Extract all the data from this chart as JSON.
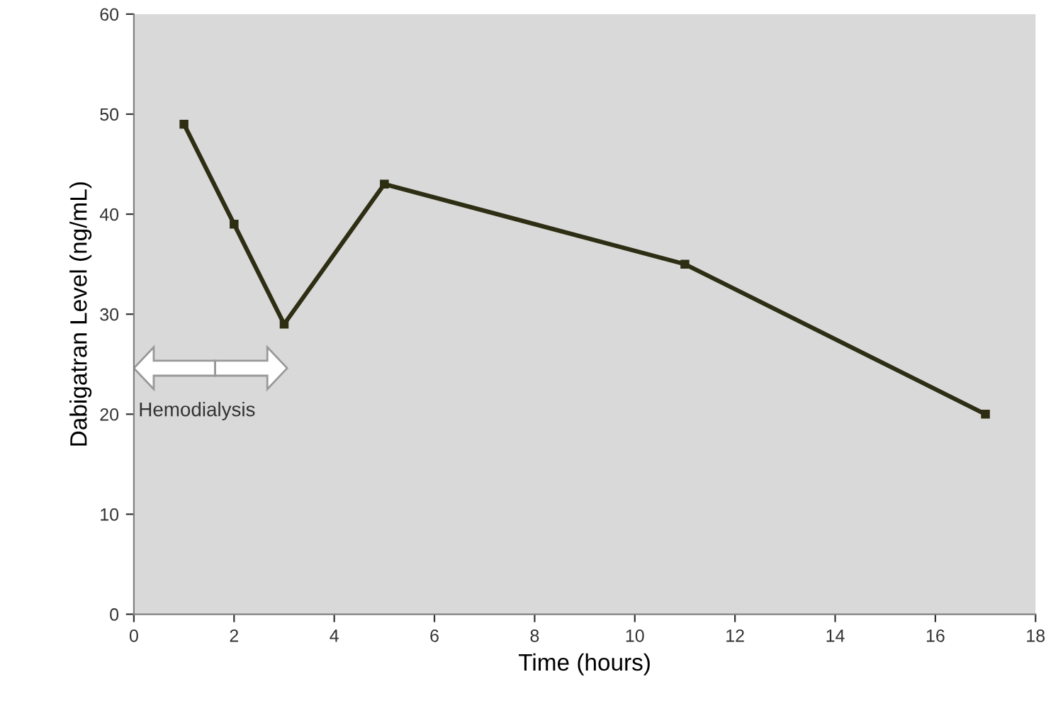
{
  "chart_data": {
    "type": "line",
    "xlabel": "Time (hours)",
    "ylabel": "Dabigatran Level (ng/mL)",
    "x": [
      1,
      2,
      3,
      5,
      11,
      17
    ],
    "series": [
      {
        "color": "#2e2e14",
        "values": [
          49,
          39,
          29,
          43,
          35,
          20
        ]
      }
    ],
    "xlim": [
      0,
      18
    ],
    "xticks": [
      0,
      2,
      4,
      6,
      8,
      10,
      12,
      14,
      16,
      18
    ],
    "ylim": [
      0,
      60
    ],
    "yticks": [
      0,
      10,
      20,
      30,
      40,
      50,
      60
    ],
    "marker": "square",
    "line_style": "solid",
    "grid": false,
    "legend": false,
    "annotations": [
      "Hemodialysis"
    ]
  }
}
